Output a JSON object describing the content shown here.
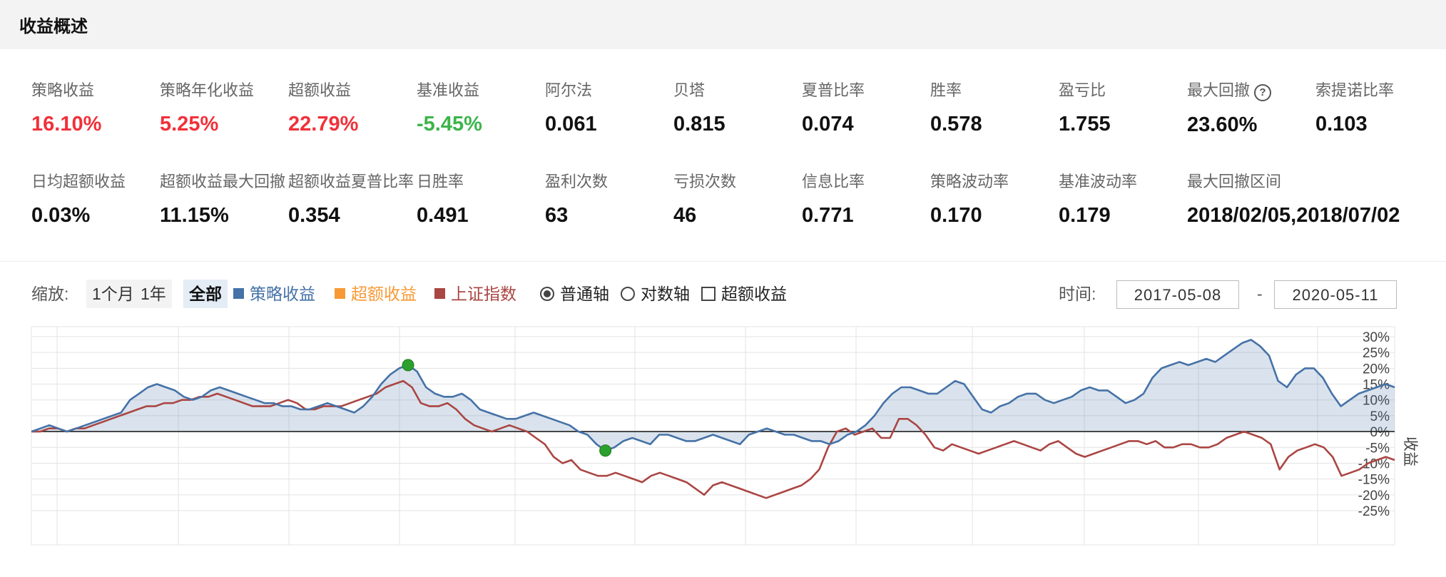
{
  "header": {
    "title": "收益概述"
  },
  "metrics": [
    {
      "label": "策略收益",
      "value": "16.10%",
      "color": "red"
    },
    {
      "label": "策略年化收益",
      "value": "5.25%",
      "color": "red"
    },
    {
      "label": "超额收益",
      "value": "22.79%",
      "color": "red"
    },
    {
      "label": "基准收益",
      "value": "-5.45%",
      "color": "green"
    },
    {
      "label": "阿尔法",
      "value": "0.061"
    },
    {
      "label": "贝塔",
      "value": "0.815"
    },
    {
      "label": "夏普比率",
      "value": "0.074"
    },
    {
      "label": "胜率",
      "value": "0.578"
    },
    {
      "label": "盈亏比",
      "value": "1.755"
    },
    {
      "label": "最大回撤",
      "value": "23.60%",
      "help_icon": "question-circle-icon"
    },
    {
      "label": "索提诺比率",
      "value": "0.103"
    },
    {
      "label": "日均超额收益",
      "value": "0.03%"
    },
    {
      "label": "超额收益最大回撤",
      "value": "11.15%"
    },
    {
      "label": "超额收益夏普比率",
      "value": "0.354"
    },
    {
      "label": "日胜率",
      "value": "0.491"
    },
    {
      "label": "盈利次数",
      "value": "63"
    },
    {
      "label": "亏损次数",
      "value": "46"
    },
    {
      "label": "信息比率",
      "value": "0.771"
    },
    {
      "label": "策略波动率",
      "value": "0.170"
    },
    {
      "label": "基准波动率",
      "value": "0.179"
    },
    {
      "label": "最大回撤区间",
      "value": "2018/02/05,2018/07/02"
    }
  ],
  "controls": {
    "zoom_label": "缩放:",
    "zoom_buttons": [
      "1个月",
      "1年",
      "全部"
    ],
    "zoom_active": "全部",
    "legend": [
      {
        "label": "策略收益",
        "color": "#4572a7"
      },
      {
        "label": "超额收益",
        "color": "#f79a36"
      },
      {
        "label": "上证指数",
        "color": "#aa4643"
      }
    ],
    "axis_options": [
      {
        "label": "普通轴",
        "checked": true
      },
      {
        "label": "对数轴",
        "checked": false
      }
    ],
    "excess_checkbox": {
      "label": "超额收益",
      "checked": false
    },
    "time_label": "时间:",
    "date_from": "2017-05-08",
    "date_to": "2020-05-11",
    "date_separator": "-"
  },
  "chart_data": {
    "type": "area",
    "ylabel": "收益",
    "ylim": [
      -25,
      30
    ],
    "yticks": [
      "30%",
      "25%",
      "20%",
      "15%",
      "10%",
      "5%",
      "0%",
      "-5%",
      "-10%",
      "-15%",
      "-20%",
      "-25%"
    ],
    "x_range": [
      "2017-05-08",
      "2020-05-11"
    ],
    "grid": true,
    "series": [
      {
        "name": "策略收益",
        "color": "#4572a7",
        "fill": true,
        "values": [
          0,
          1,
          2,
          1,
          0,
          1,
          2,
          3,
          4,
          5,
          6,
          10,
          12,
          14,
          15,
          14,
          13,
          11,
          10,
          11,
          13,
          14,
          13,
          12,
          11,
          10,
          9,
          9,
          8,
          8,
          7,
          7,
          8,
          9,
          8,
          7,
          6,
          8,
          11,
          15,
          18,
          20,
          21,
          19,
          14,
          12,
          11,
          11,
          12,
          10,
          7,
          6,
          5,
          4,
          4,
          5,
          6,
          5,
          4,
          3,
          2,
          0,
          -1,
          -4,
          -6,
          -5,
          -3,
          -2,
          -3,
          -4,
          -1,
          -1,
          -2,
          -3,
          -3,
          -2,
          -1,
          -2,
          -3,
          -4,
          -1,
          0,
          1,
          0,
          -1,
          -1,
          -2,
          -3,
          -3,
          -4,
          -3,
          -1,
          0,
          2,
          5,
          9,
          12,
          14,
          14,
          13,
          12,
          12,
          14,
          16,
          15,
          11,
          7,
          6,
          8,
          9,
          11,
          12,
          12,
          10,
          9,
          10,
          11,
          13,
          14,
          13,
          13,
          11,
          9,
          10,
          12,
          17,
          20,
          21,
          22,
          21,
          22,
          23,
          22,
          24,
          26,
          28,
          29,
          27,
          24,
          16,
          14,
          18,
          20,
          20,
          17,
          12,
          8,
          10,
          12,
          13,
          14,
          15,
          14
        ]
      },
      {
        "name": "上证指数",
        "color": "#aa4643",
        "fill": false,
        "values": [
          0,
          0,
          1,
          1,
          0,
          1,
          1,
          2,
          3,
          4,
          5,
          6,
          7,
          8,
          8,
          9,
          9,
          10,
          10,
          11,
          11,
          12,
          11,
          10,
          9,
          8,
          8,
          8,
          9,
          10,
          9,
          7,
          7,
          8,
          8,
          8,
          9,
          10,
          11,
          12,
          14,
          15,
          16,
          14,
          9,
          8,
          8,
          9,
          7,
          4,
          2,
          1,
          0,
          1,
          2,
          1,
          0,
          -2,
          -4,
          -8,
          -10,
          -9,
          -12,
          -13,
          -14,
          -14,
          -13,
          -14,
          -15,
          -16,
          -14,
          -13,
          -14,
          -15,
          -16,
          -18,
          -20,
          -17,
          -16,
          -17,
          -18,
          -19,
          -20,
          -21,
          -20,
          -19,
          -18,
          -17,
          -15,
          -12,
          -5,
          0,
          1,
          -1,
          0,
          1,
          -2,
          -2,
          4,
          4,
          2,
          -1,
          -5,
          -6,
          -4,
          -5,
          -6,
          -7,
          -6,
          -5,
          -4,
          -3,
          -4,
          -5,
          -6,
          -4,
          -3,
          -5,
          -7,
          -8,
          -7,
          -6,
          -5,
          -4,
          -3,
          -3,
          -4,
          -3,
          -5,
          -5,
          -4,
          -4,
          -5,
          -5,
          -4,
          -2,
          -1,
          0,
          -1,
          -2,
          -4,
          -12,
          -8,
          -6,
          -5,
          -4,
          -5,
          -8,
          -14,
          -13,
          -12,
          -10,
          -9,
          -8,
          -9
        ]
      }
    ],
    "markers": [
      {
        "series": "策略收益",
        "index": 42,
        "color": "#2ca02c"
      },
      {
        "series": "策略收益",
        "index": 64,
        "color": "#2ca02c"
      }
    ]
  }
}
